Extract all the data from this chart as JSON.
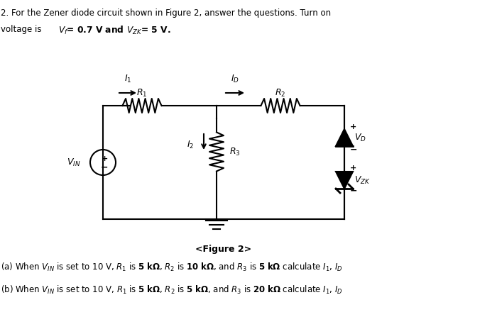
{
  "title_line1": "2. For the Zener diode circuit shown in Figure 2, answer the questions. Turn on",
  "title_line2": "voltage is Vᴿ= 0.7 V and Vᴢᴋ= 5 V.",
  "figure_caption": "<Figure 2>",
  "part_a": "(a) When Vᴵᴺ is set to 10 V, R₁ is 5 kΩ, R₂ is 10 kΩ, and R₃ is 5 kΩ calculate I₁, Iᴰ",
  "part_b": "(b) When Vᴵᴺ is set to 10 V, R₁ is 5 kΩ, R₂ is 5 kΩ, and R₃ is 20 kΩ calculate I₁, Iᴰ",
  "bg_color": "#ffffff",
  "text_color": "#000000"
}
